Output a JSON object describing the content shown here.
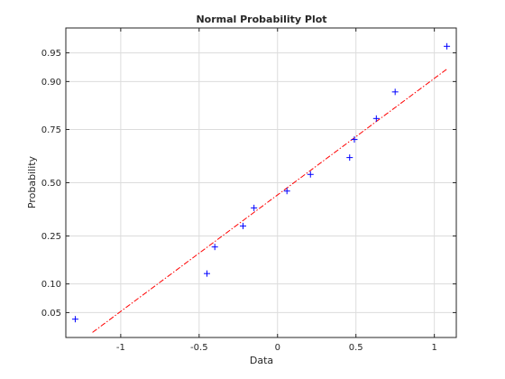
{
  "chart_data": {
    "type": "scatter",
    "title": "Normal Probability Plot",
    "xlabel": "Data",
    "ylabel": "Probability",
    "xlim": [
      -1.35,
      1.14
    ],
    "ylim": [
      0.025,
      0.975
    ],
    "y_scale": "normal-probability",
    "grid": true,
    "x_ticks": [
      {
        "value": -1,
        "label": "-1"
      },
      {
        "value": -0.5,
        "label": "-0.5"
      },
      {
        "value": 0,
        "label": "0"
      },
      {
        "value": 0.5,
        "label": "0.5"
      },
      {
        "value": 1,
        "label": "1"
      }
    ],
    "y_ticks": [
      {
        "value": 0.05,
        "label": "0.05"
      },
      {
        "value": 0.1,
        "label": "0.10"
      },
      {
        "value": 0.25,
        "label": "0.25"
      },
      {
        "value": 0.5,
        "label": "0.50"
      },
      {
        "value": 0.75,
        "label": "0.75"
      },
      {
        "value": 0.9,
        "label": "0.90"
      },
      {
        "value": 0.95,
        "label": "0.95"
      }
    ],
    "points": [
      {
        "x": -1.29,
        "y": 0.042
      },
      {
        "x": -0.45,
        "y": 0.125
      },
      {
        "x": -0.4,
        "y": 0.208
      },
      {
        "x": -0.22,
        "y": 0.292
      },
      {
        "x": -0.15,
        "y": 0.375
      },
      {
        "x": 0.06,
        "y": 0.458
      },
      {
        "x": 0.21,
        "y": 0.542
      },
      {
        "x": 0.46,
        "y": 0.625
      },
      {
        "x": 0.49,
        "y": 0.708
      },
      {
        "x": 0.63,
        "y": 0.792
      },
      {
        "x": 0.75,
        "y": 0.875
      },
      {
        "x": 1.08,
        "y": 0.958
      }
    ],
    "fit_line": {
      "x": [
        -1.18,
        1.08
      ],
      "y": [
        0.029,
        0.925
      ]
    },
    "colors": {
      "points": "#0000ff",
      "fit_line": "#ff0000"
    }
  }
}
